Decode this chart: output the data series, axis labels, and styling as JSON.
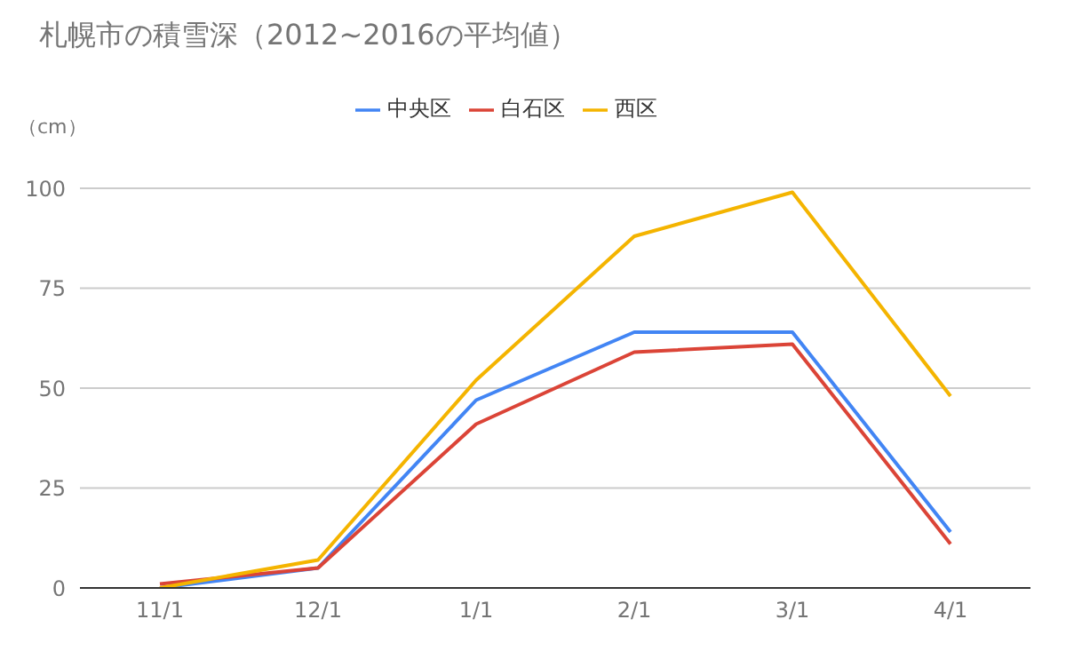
{
  "chart_data": {
    "type": "line",
    "title": "札幌市の積雪深（2012~2016の平均値）",
    "ylabel": "（cm）",
    "categories": [
      "11/1",
      "12/1",
      "1/1",
      "2/1",
      "3/1",
      "4/1"
    ],
    "series": [
      {
        "name": "中央区",
        "color": "#4285f4",
        "values": [
          0,
          5,
          47,
          64,
          64,
          14
        ]
      },
      {
        "name": "白石区",
        "color": "#db4437",
        "values": [
          1,
          5,
          41,
          59,
          61,
          11
        ]
      },
      {
        "name": "西区",
        "color": "#f4b400",
        "values": [
          0,
          7,
          52,
          88,
          99,
          48
        ]
      }
    ],
    "ylim": [
      0,
      100
    ],
    "yticks": [
      0,
      25,
      50,
      75,
      100
    ],
    "grid": "y",
    "legend": "top",
    "marker": "none",
    "line_style": "solid"
  }
}
